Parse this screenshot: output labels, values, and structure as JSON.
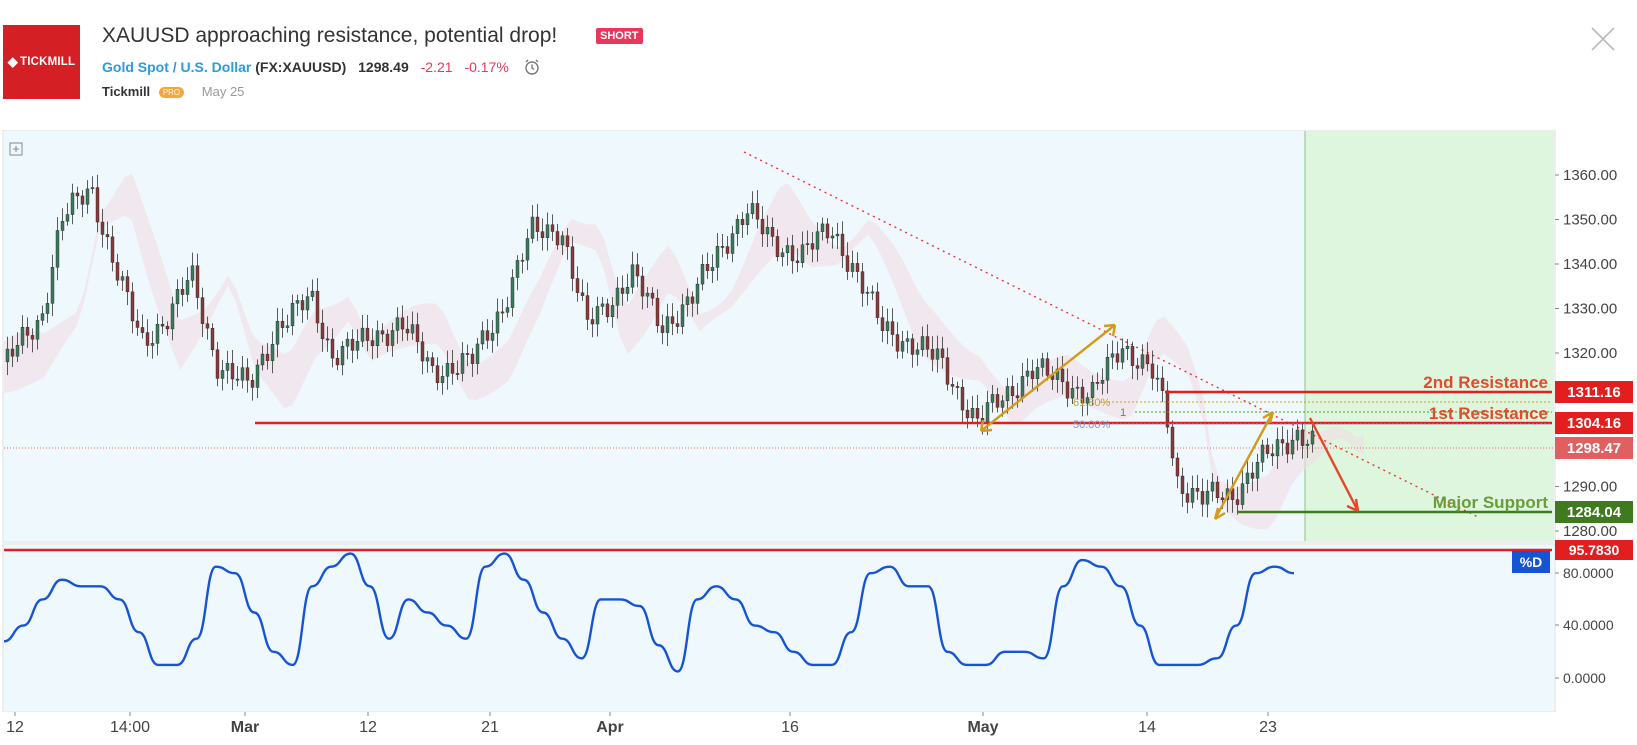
{
  "idea": {
    "title": "XAUUSD approaching resistance, potential drop!",
    "badge": "SHORT",
    "symbol_name": "Gold Spot / U.S. Dollar",
    "ticker": "(FX:XAUUSD)",
    "price": "1298.49",
    "change": "-2.21",
    "change_pct": "-0.17%",
    "author": "Tickmill",
    "author_badge": "PRO",
    "date": "May 25",
    "logo_text": "TICKMILL"
  },
  "colors": {
    "accent_blue": "#2b9bd9",
    "negative": "#e8375a",
    "resistance": "#e31e1e",
    "support": "#3f7a1f",
    "oscillator": "#1654d4",
    "candle_up": "#3b7a5c",
    "candle_down": "#8a3a3a",
    "forecast_zone": "#ddf6dd",
    "arrow_gold": "#d49a1c"
  },
  "icons": {
    "close": "close-icon",
    "alert": "alarm-clock-icon",
    "expand": "plus-square-icon"
  },
  "chart_data": {
    "type": "candlestick",
    "price_axis": {
      "ticks": [
        1360,
        1350,
        1340,
        1330,
        1320,
        1290,
        1280
      ],
      "tick_labels": [
        "1360.00",
        "1350.00",
        "1340.00",
        "1330.00",
        "1320.00",
        "1290.00",
        "1280.00"
      ]
    },
    "time_axis": [
      {
        "label": "12",
        "bold": false
      },
      {
        "label": "14:00",
        "bold": false
      },
      {
        "label": "Mar",
        "bold": true
      },
      {
        "label": "12",
        "bold": false
      },
      {
        "label": "21",
        "bold": false
      },
      {
        "label": "Apr",
        "bold": true
      },
      {
        "label": "16",
        "bold": false
      },
      {
        "label": "May",
        "bold": true
      },
      {
        "label": "14",
        "bold": false
      },
      {
        "label": "23",
        "bold": false
      }
    ],
    "levels": [
      {
        "name": "2nd Resistance",
        "value": "1311.16"
      },
      {
        "name": "1st Resistance",
        "value": "1304.16"
      },
      {
        "name": "Major Support",
        "value": "1284.04"
      }
    ],
    "current_price_label": "1298.47",
    "fib_labels": [
      "61.80%",
      "1",
      "50.00%"
    ],
    "oscillator": {
      "name": "%D",
      "level_label": "95.7830",
      "ticks": [
        "80.0000",
        "40.0000",
        "0.0000"
      ],
      "values": [
        28,
        40,
        60,
        75,
        70,
        70,
        60,
        35,
        10,
        10,
        30,
        85,
        80,
        50,
        20,
        10,
        70,
        85,
        95,
        70,
        30,
        60,
        50,
        40,
        30,
        85,
        95,
        75,
        50,
        30,
        15,
        60,
        60,
        55,
        25,
        5,
        60,
        70,
        60,
        40,
        35,
        20,
        10,
        10,
        35,
        80,
        85,
        70,
        70,
        20,
        10,
        10,
        20,
        20,
        15,
        70,
        90,
        85,
        70,
        40,
        10,
        10,
        10,
        15,
        40,
        80,
        85,
        80
      ]
    }
  }
}
